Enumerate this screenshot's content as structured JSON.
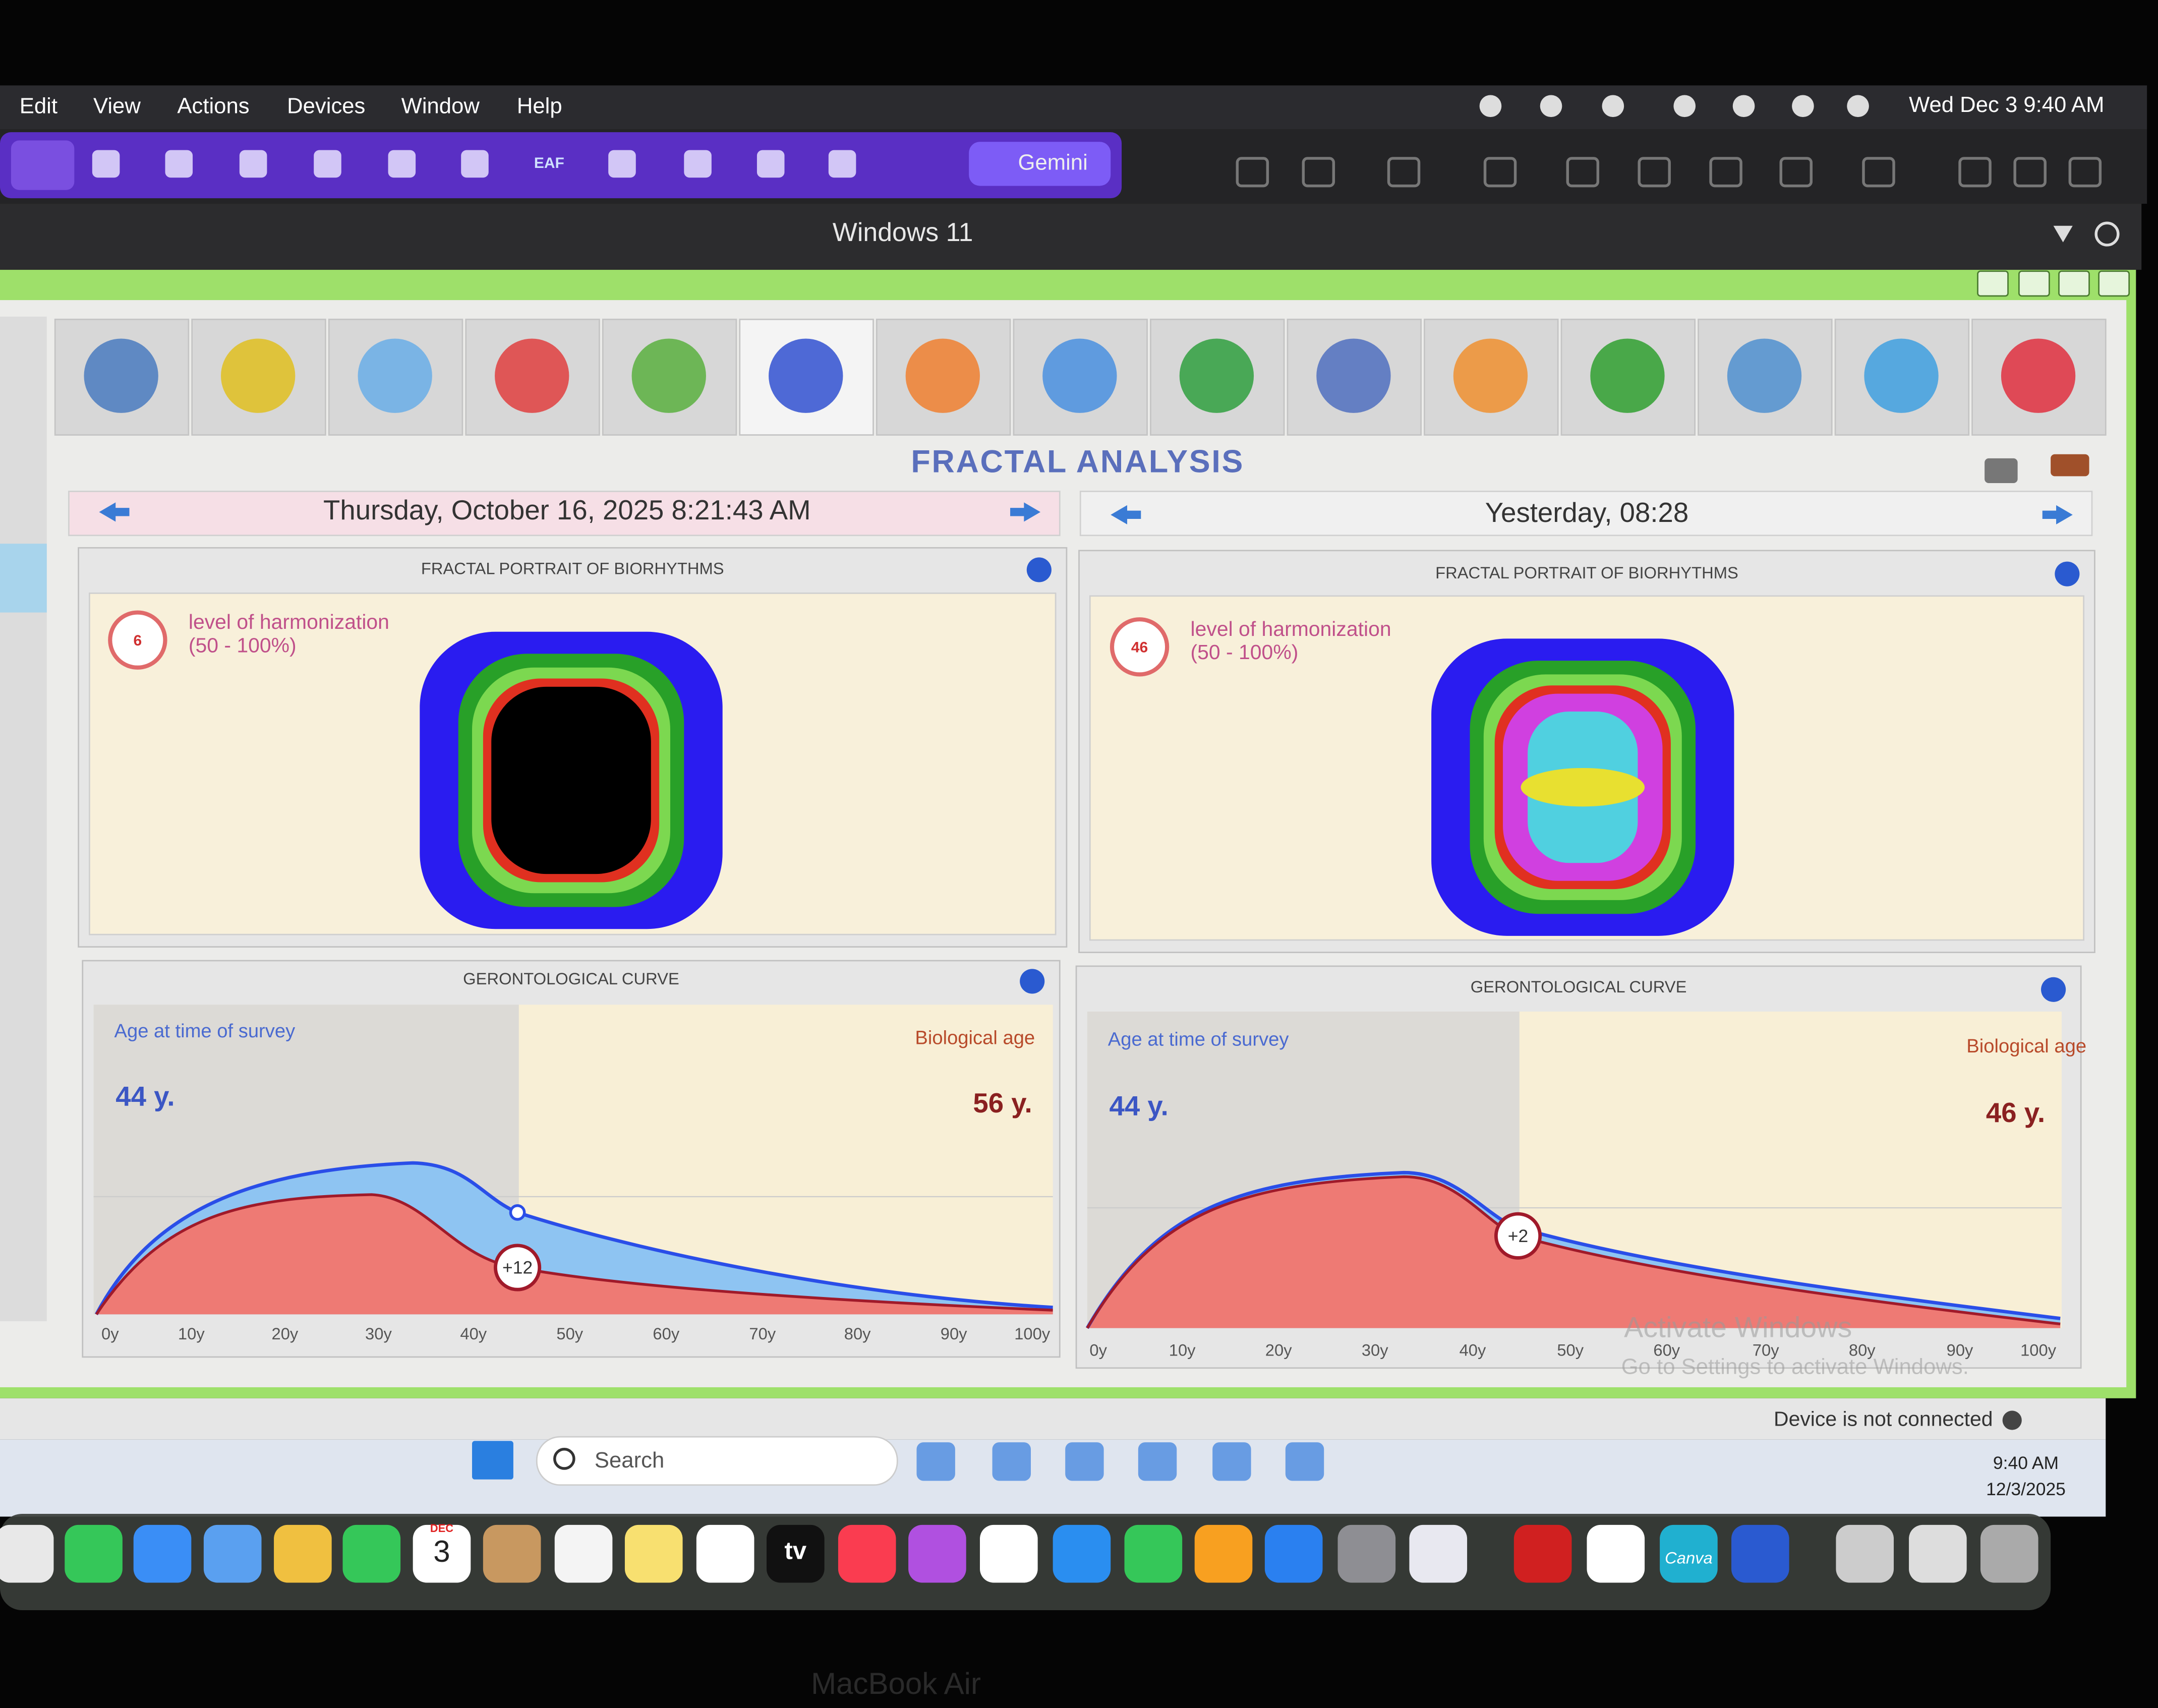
{
  "menu_bar": {
    "items": [
      "Edit",
      "View",
      "Actions",
      "Devices",
      "Window",
      "Help"
    ],
    "clock": "Wed Dec 3  9:40 AM"
  },
  "browser_toolbar": {
    "tab_label": "EAF",
    "gemini": "Gemini"
  },
  "window": {
    "title": "Windows 11"
  },
  "app": {
    "title": "FRACTAL ANALYSIS",
    "panels": [
      {
        "date": "Thursday, October 16, 2025 8:21:43 AM",
        "fractal_title": "FRACTAL PORTRAIT OF BIORHYTHMS",
        "harmonization_value": "6",
        "harmonization_label": "level of harmonization",
        "harmonization_range": "(50 - 100%)",
        "curve_title": "GERONTOLOGICAL CURVE",
        "age_label": "Age at time of survey",
        "age": "44 y.",
        "bio_label": "Biological age",
        "bio_age": "56 y.",
        "difference": "+12"
      },
      {
        "date": "Yesterday, 08:28",
        "fractal_title": "FRACTAL PORTRAIT OF BIORHYTHMS",
        "harmonization_value": "46",
        "harmonization_label": "level of harmonization",
        "harmonization_range": "(50 - 100%)",
        "curve_title": "GERONTOLOGICAL CURVE",
        "age_label": "Age at time of survey",
        "age": "44 y.",
        "bio_label": "Biological age",
        "bio_age": "46 y.",
        "difference": "+2"
      }
    ],
    "x_axis": [
      "0y",
      "10y",
      "20y",
      "30y",
      "40y",
      "50y",
      "60y",
      "70y",
      "80y",
      "90y",
      "100y"
    ],
    "status": "Device is not connected"
  },
  "watermark": [
    "Activate Windows",
    "Go to Settings to activate Windows."
  ],
  "taskbar": {
    "search": "Search",
    "time": "9:40 AM",
    "date": "12/3/2025"
  },
  "dock": {
    "calendar_month": "DEC",
    "calendar_day": "3",
    "tv": "tv",
    "canva": "Canva"
  },
  "footer": "MacBook Air"
}
